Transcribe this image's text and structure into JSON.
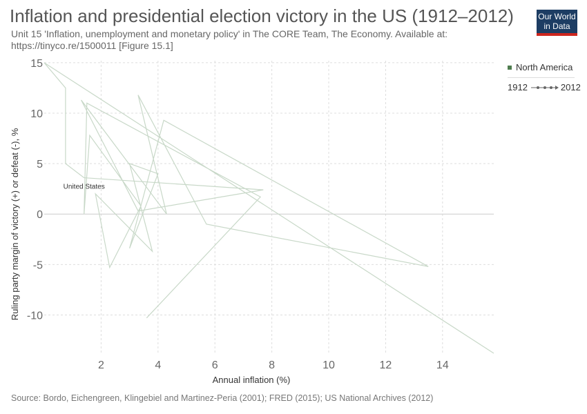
{
  "header": {
    "title": "Inflation and presidential election victory in the US (1912–2012)",
    "subtitle_line1": "Unit 15 'Inflation, unemployment and monetary policy' in The CORE Team, The Economy. Available at:",
    "subtitle_line2": "https://tinyco.re/1500011 [Figure 15.1]",
    "logo_line1": "Our World",
    "logo_line2": "in Data"
  },
  "legend": {
    "series_label": "North America",
    "series_color": "#4f7d4f",
    "timeline_start": "1912",
    "timeline_end": "2012"
  },
  "footer": {
    "source": "Source: Bordo, Eichengreen, Klingebiel and Martinez-Peria (2001); FRED (2015); US National Archives (2012)"
  },
  "chart_data": {
    "type": "line",
    "xlabel": "Annual inflation (%)",
    "ylabel": "Ruling party margin of victory (+) or defeat (-), %",
    "xlim": [
      0,
      15.8
    ],
    "ylim": [
      -13.8,
      15.2
    ],
    "x_ticks": [
      2,
      4,
      6,
      8,
      10,
      12,
      14
    ],
    "x_tick_labels": [
      "2",
      "4",
      "6",
      "8",
      "10",
      "12",
      "14"
    ],
    "y_ticks": [
      -10,
      -5,
      0,
      5,
      10,
      15
    ],
    "y_tick_labels": [
      "-10",
      "-5",
      "0",
      "5",
      "10",
      "15"
    ],
    "grid": true,
    "line_color": "#c8d8c8",
    "series": [
      {
        "name": "United States",
        "label_x": 1.4,
        "label_y": 2.3,
        "points": [
          [
            15.8,
            -13.8
          ],
          [
            0.0,
            15.0
          ],
          [
            0.75,
            12.5
          ],
          [
            0.75,
            5.0
          ],
          [
            1.4,
            3.6
          ],
          [
            7.7,
            2.4
          ],
          [
            3.3,
            0.3
          ],
          [
            1.3,
            11.3
          ],
          [
            4.3,
            0.0
          ],
          [
            3.3,
            11.8
          ],
          [
            5.7,
            -1.0
          ],
          [
            13.5,
            -5.2
          ],
          [
            4.2,
            9.3
          ],
          [
            3.0,
            -3.4
          ],
          [
            4.0,
            4.0
          ],
          [
            3.0,
            5.0
          ],
          [
            3.8,
            -3.7
          ],
          [
            1.8,
            2.0
          ],
          [
            2.3,
            -5.3
          ],
          [
            3.4,
            0.8
          ],
          [
            1.6,
            7.8
          ],
          [
            1.4,
            0.0
          ],
          [
            1.5,
            11.0
          ],
          [
            7.6,
            1.7
          ],
          [
            3.6,
            -10.3
          ]
        ]
      }
    ]
  }
}
